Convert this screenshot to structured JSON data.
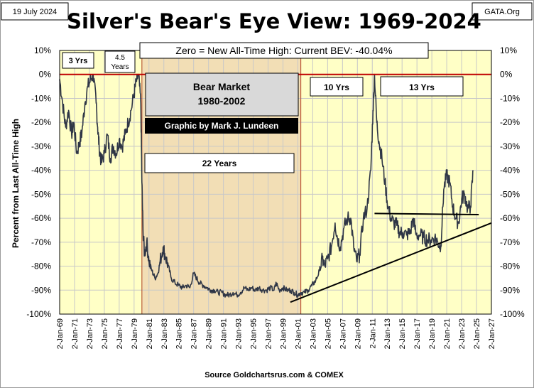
{
  "header": {
    "date": "19 July 2024",
    "title": "Silver's Bear's Eye View: 1969-2024",
    "brand": "GATA.Org"
  },
  "banner": "Zero = New All-Time High: Current BEV: -40.04%",
  "source": "Source  Goldchartsrus.com  & COMEX",
  "annotations": {
    "yrs3": "3 Yrs",
    "yrs4_5_a": "4.5",
    "yrs4_5_b": "Years",
    "bear_line1": "Bear Market",
    "bear_line2": "1980-2002",
    "credit": "Graphic by Mark J. Lundeen",
    "years22": "22 Years",
    "yrs10": "10 Yrs",
    "yrs13": "13 Yrs"
  },
  "colors": {
    "plot_bg": "#FFFFC6",
    "bear_shade": "#F2DEB5",
    "grid": "#C8C8C8",
    "series": "#2F3646",
    "zero_line": "#C00000",
    "credit_bg": "#000000",
    "bear_box_bg": "#D9D9D9"
  },
  "chart_data": {
    "type": "line",
    "title": "Silver's Bear's Eye View: 1969-2024",
    "ylabel": "Percent  from  Last  All-Time  High",
    "xlabel": "",
    "ylim": [
      -100,
      10
    ],
    "yticks": [
      "10%",
      "0%",
      "-10%",
      "-20%",
      "-30%",
      "-40%",
      "-50%",
      "-60%",
      "-70%",
      "-80%",
      "-90%",
      "-100%"
    ],
    "xticks": [
      "2-Jan-69",
      "2-Jan-71",
      "2-Jan-73",
      "2-Jan-75",
      "2-Jan-77",
      "2-Jan-79",
      "2-Jan-81",
      "2-Jan-83",
      "2-Jan-85",
      "2-Jan-87",
      "2-Jan-89",
      "2-Jan-91",
      "2-Jan-93",
      "2-Jan-95",
      "2-Jan-97",
      "2-Jan-99",
      "2-Jan-01",
      "2-Jan-03",
      "2-Jan-05",
      "2-Jan-07",
      "2-Jan-09",
      "2-Jan-11",
      "2-Jan-13",
      "2-Jan-15",
      "2-Jan-17",
      "2-Jan-19",
      "2-Jan-21",
      "2-Jan-23",
      "2-Jan-25",
      "2-Jan-27"
    ],
    "xlim": [
      1969.0,
      2027.0
    ],
    "grid": true,
    "shaded_region": {
      "start": 1980.05,
      "end": 2001.4
    },
    "reference_line_y": 0,
    "current_value": -40.04,
    "series": [
      {
        "x": [
          1969.0,
          1969.4,
          1969.8,
          1970.2,
          1970.6,
          1970.9,
          1971.3,
          1971.7,
          1972.0,
          1972.4,
          1972.8,
          1973.2,
          1973.5,
          1973.9,
          1974.1,
          1974.3,
          1974.6,
          1975.0,
          1975.4,
          1975.8,
          1976.2,
          1976.6,
          1977.0,
          1977.4,
          1977.8,
          1978.2,
          1978.6,
          1979.0,
          1979.3,
          1979.6,
          1979.9,
          1980.05,
          1980.2,
          1980.4,
          1980.7,
          1981.0,
          1981.4,
          1981.8,
          1982.2,
          1982.5,
          1982.9,
          1983.2,
          1983.6,
          1984.0,
          1984.5,
          1985.0,
          1985.5,
          1986.0,
          1986.5,
          1987.0,
          1987.4,
          1987.8,
          1988.3,
          1988.8,
          1989.3,
          1989.8,
          1990.3,
          1990.8,
          1991.3,
          1991.8,
          1992.3,
          1992.8,
          1993.3,
          1993.8,
          1994.3,
          1994.8,
          1995.3,
          1995.8,
          1996.3,
          1996.8,
          1997.3,
          1997.8,
          1998.1,
          1998.5,
          1999.0,
          1999.5,
          2000.0,
          2000.5,
          2001.0,
          2001.4,
          2001.9,
          2002.4,
          2002.9,
          2003.4,
          2003.9,
          2004.3,
          2004.6,
          2005.0,
          2005.5,
          2006.0,
          2006.3,
          2006.7,
          2007.2,
          2007.7,
          2008.1,
          2008.5,
          2008.9,
          2009.3,
          2009.8,
          2010.3,
          2010.8,
          2011.1,
          2011.3,
          2011.6,
          2011.9,
          2012.3,
          2012.7,
          2013.1,
          2013.5,
          2013.9,
          2014.3,
          2014.7,
          2015.1,
          2015.6,
          2016.1,
          2016.5,
          2016.9,
          2017.4,
          2017.9,
          2018.4,
          2018.9,
          2019.4,
          2019.8,
          2020.2,
          2020.6,
          2021.0,
          2021.4,
          2021.8,
          2022.2,
          2022.6,
          2023.0,
          2023.4,
          2023.8,
          2024.2,
          2024.55
        ],
        "y": [
          -2,
          -12,
          -22,
          -15,
          -25,
          -20,
          -33,
          -28,
          -24,
          -12,
          -5,
          -2,
          0,
          -12,
          -22,
          -30,
          -37,
          -33,
          -25,
          -35,
          -30,
          -33,
          -27,
          -30,
          -25,
          -20,
          -15,
          -8,
          -3,
          0,
          -12,
          -45,
          -65,
          -75,
          -70,
          -78,
          -82,
          -85,
          -83,
          -78,
          -72,
          -76,
          -80,
          -85,
          -87,
          -88,
          -89,
          -88,
          -89,
          -83,
          -85,
          -87,
          -88,
          -89,
          -90,
          -90,
          -91,
          -91,
          -92,
          -92,
          -91,
          -92,
          -91,
          -89,
          -90,
          -89,
          -90,
          -89,
          -90,
          -90,
          -89,
          -90,
          -87,
          -90,
          -89,
          -90,
          -90,
          -91,
          -92,
          -91,
          -91,
          -90,
          -88,
          -86,
          -82,
          -77,
          -80,
          -77,
          -72,
          -62,
          -68,
          -72,
          -64,
          -60,
          -60,
          -72,
          -78,
          -75,
          -60,
          -56,
          -40,
          -15,
          0,
          -20,
          -28,
          -35,
          -45,
          -55,
          -60,
          -62,
          -63,
          -66,
          -66,
          -67,
          -66,
          -60,
          -67,
          -67,
          -68,
          -69,
          -69,
          -68,
          -70,
          -72,
          -48,
          -42,
          -45,
          -55,
          -60,
          -62,
          -52,
          -50,
          -56,
          -55,
          -40
        ]
      }
    ],
    "trendlines": [
      {
        "name": "support",
        "x": [
          2000.0,
          2027.0
        ],
        "y": [
          -95,
          -62
        ]
      },
      {
        "name": "resistance",
        "x": [
          2011.3,
          2025.3
        ],
        "y": [
          -58,
          -58.5
        ]
      }
    ]
  }
}
